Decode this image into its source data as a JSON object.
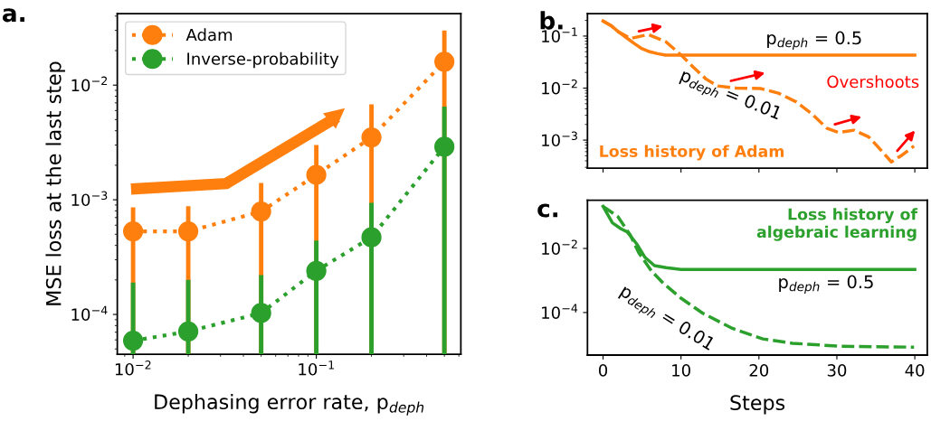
{
  "chart_data": [
    {
      "type": "line",
      "title": "a.",
      "xlabel": "Dephasing error rate, p$_{deph}$",
      "ylabel": "MSE loss at the last step",
      "log": "xy",
      "marker": "circle",
      "line_style": "dotted",
      "legend": "top left",
      "grid": false,
      "x": [
        0.01,
        0.02,
        0.05,
        0.1,
        0.2,
        0.5
      ],
      "xlim": [
        0.0082,
        0.615
      ],
      "xticks": [
        {
          "value": 0.01,
          "label": "10$^{−2}$"
        },
        {
          "value": 0.1,
          "label": "10$^{−1}$"
        }
      ],
      "ylim": [
        4.5e-05,
        0.042
      ],
      "yticks": [
        {
          "value": 0.0001,
          "label": "10$^{−4}$"
        },
        {
          "value": 0.001,
          "label": "10$^{−3}$"
        },
        {
          "value": 0.01,
          "label": "10$^{−2}$"
        }
      ],
      "series": [
        {
          "name": "Adam",
          "color": "#ff7f0e",
          "values": [
            0.00053,
            0.00053,
            0.00079,
            0.00165,
            0.0035,
            0.016
          ],
          "errors": [
            [
              4.5e-05,
              0.00086
            ],
            [
              4.5e-05,
              0.00088
            ],
            [
              4.5e-05,
              0.0014
            ],
            [
              4.5e-05,
              0.003
            ],
            [
              4.5e-05,
              0.0068
            ],
            [
              4.5e-05,
              0.03
            ]
          ]
        },
        {
          "name": "Inverse-probability",
          "color": "#2ca02c",
          "values": [
            5.9e-05,
            7.1e-05,
            0.000103,
            0.00024,
            0.00047,
            0.0029
          ],
          "errors": [
            [
              4.5e-05,
              0.00019
            ],
            [
              4.5e-05,
              0.0002
            ],
            [
              4.5e-05,
              0.00022
            ],
            [
              4.5e-05,
              0.00044
            ],
            [
              4.5e-05,
              0.00094
            ],
            [
              4.5e-05,
              0.0065
            ]
          ]
        }
      ]
    },
    {
      "type": "line",
      "title": "b.",
      "log": true,
      "grid": false,
      "tick_labels": "y",
      "xlim": [
        -2,
        41.6
      ],
      "xticks": [
        0,
        10,
        20,
        30,
        40
      ],
      "ylim": [
        0.00029,
        0.27
      ],
      "yticks": [
        {
          "value": 0.001,
          "label": "10$^{−3}$"
        },
        {
          "value": 0.01,
          "label": "10$^{−2}$"
        },
        {
          "value": 0.1,
          "label": "10$^{−1}$"
        }
      ],
      "annotations": [
        "p$_{deph}$ = 0.5",
        "p$_{deph}$ = 0.01",
        "Overshoots",
        "Loss history of Adam"
      ],
      "series": [
        {
          "color": "#ff7f0e",
          "line_style": "solid",
          "x": [
            0,
            1,
            2,
            3,
            4,
            5,
            6,
            7,
            8,
            10,
            20,
            30,
            40
          ],
          "values": [
            0.195,
            0.16,
            0.12,
            0.093,
            0.072,
            0.057,
            0.05,
            0.046,
            0.043,
            0.043,
            0.043,
            0.043,
            0.043
          ]
        },
        {
          "color": "#ff7f0e",
          "line_style": "dashed",
          "x": [
            0,
            1,
            2,
            3.5,
            5.8,
            8.1,
            10.1,
            11.6,
            13.2,
            14.7,
            17.1,
            20.2,
            22.5,
            24.8,
            26.8,
            28.7,
            30.2,
            32.2,
            34.1,
            35.7,
            37,
            38.4,
            39.9
          ],
          "values": [
            0.195,
            0.16,
            0.12,
            0.09,
            0.107,
            0.077,
            0.042,
            0.025,
            0.015,
            0.011,
            0.01,
            0.0098,
            0.008,
            0.0054,
            0.0032,
            0.0017,
            0.0014,
            0.00155,
            0.00115,
            0.00063,
            0.00038,
            0.00052,
            0.00077
          ]
        }
      ]
    },
    {
      "type": "line",
      "title": "c.",
      "log": true,
      "grid": false,
      "xlabel": "Steps",
      "xlim": [
        -2,
        41.6
      ],
      "xticks": [
        0,
        10,
        20,
        30,
        40
      ],
      "ylim": [
        4.7e-06,
        0.32
      ],
      "yticks": [
        {
          "value": 0.0001,
          "label": "10$^{−4}$"
        },
        {
          "value": 0.01,
          "label": "10$^{−2}$"
        }
      ],
      "annotations": [
        "p$_{deph}$ = 0.5",
        "p$_{deph}$ = 0.01",
        "Loss history of\nalgebraic learning"
      ],
      "series": [
        {
          "color": "#2ca02c",
          "line_style": "solid",
          "x": [
            0,
            1.2,
            2.3,
            3.1,
            4.3,
            5.4,
            6.6,
            8.1,
            10,
            20,
            30,
            40
          ],
          "values": [
            0.207,
            0.063,
            0.041,
            0.033,
            0.014,
            0.0052,
            0.0029,
            0.0025,
            0.0022,
            0.0022,
            0.0022,
            0.0022
          ]
        },
        {
          "color": "#2ca02c",
          "line_style": "dashed",
          "x": [
            0,
            1.9,
            3.5,
            4.6,
            6.2,
            7.7,
            10,
            12.8,
            16.6,
            20.5,
            24.3,
            30.2,
            39.9
          ],
          "values": [
            0.207,
            0.098,
            0.026,
            0.0072,
            0.002,
            0.00083,
            0.00028,
            9.5e-05,
            3.2e-05,
            1.5e-05,
            1.1e-05,
            8.9e-06,
            8.3e-06
          ]
        }
      ]
    }
  ]
}
